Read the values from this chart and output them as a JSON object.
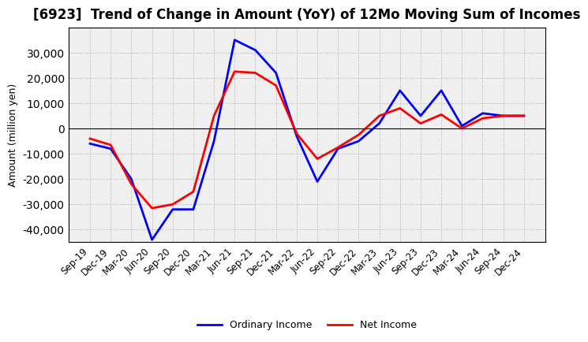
{
  "title": "[6923]  Trend of Change in Amount (YoY) of 12Mo Moving Sum of Incomes",
  "ylabel": "Amount (million yen)",
  "background_color": "#ffffff",
  "plot_bg_color": "#f0f0f0",
  "grid_color": "#aaaaaa",
  "xlabels": [
    "Sep-19",
    "Dec-19",
    "Mar-20",
    "Jun-20",
    "Sep-20",
    "Dec-20",
    "Mar-21",
    "Jun-21",
    "Sep-21",
    "Dec-21",
    "Mar-22",
    "Jun-22",
    "Sep-22",
    "Dec-22",
    "Mar-23",
    "Jun-23",
    "Sep-23",
    "Dec-23",
    "Mar-24",
    "Jun-24",
    "Sep-24",
    "Dec-24"
  ],
  "ordinary_income": [
    -6000,
    -8000,
    -20000,
    -44000,
    -32000,
    -32000,
    -5000,
    35000,
    31000,
    22000,
    -3000,
    -21000,
    -8000,
    -5000,
    2000,
    15000,
    5000,
    15000,
    1000,
    6000,
    5000,
    5000
  ],
  "net_income": [
    -4000,
    -6500,
    -22000,
    -31500,
    -30000,
    -25000,
    5000,
    22500,
    22000,
    17000,
    -2000,
    -12000,
    -7500,
    -2500,
    5000,
    8000,
    2000,
    5500,
    0,
    4000,
    5000,
    5000
  ],
  "ordinary_color": "#0000ff",
  "net_color": "#ff0000",
  "ylim": [
    -45000,
    40000
  ],
  "yticks": [
    -40000,
    -30000,
    -20000,
    -10000,
    0,
    10000,
    20000,
    30000
  ],
  "line_width": 2.0,
  "title_fontsize": 12,
  "axis_fontsize": 9,
  "tick_fontsize": 8.5,
  "legend_fontsize": 9
}
